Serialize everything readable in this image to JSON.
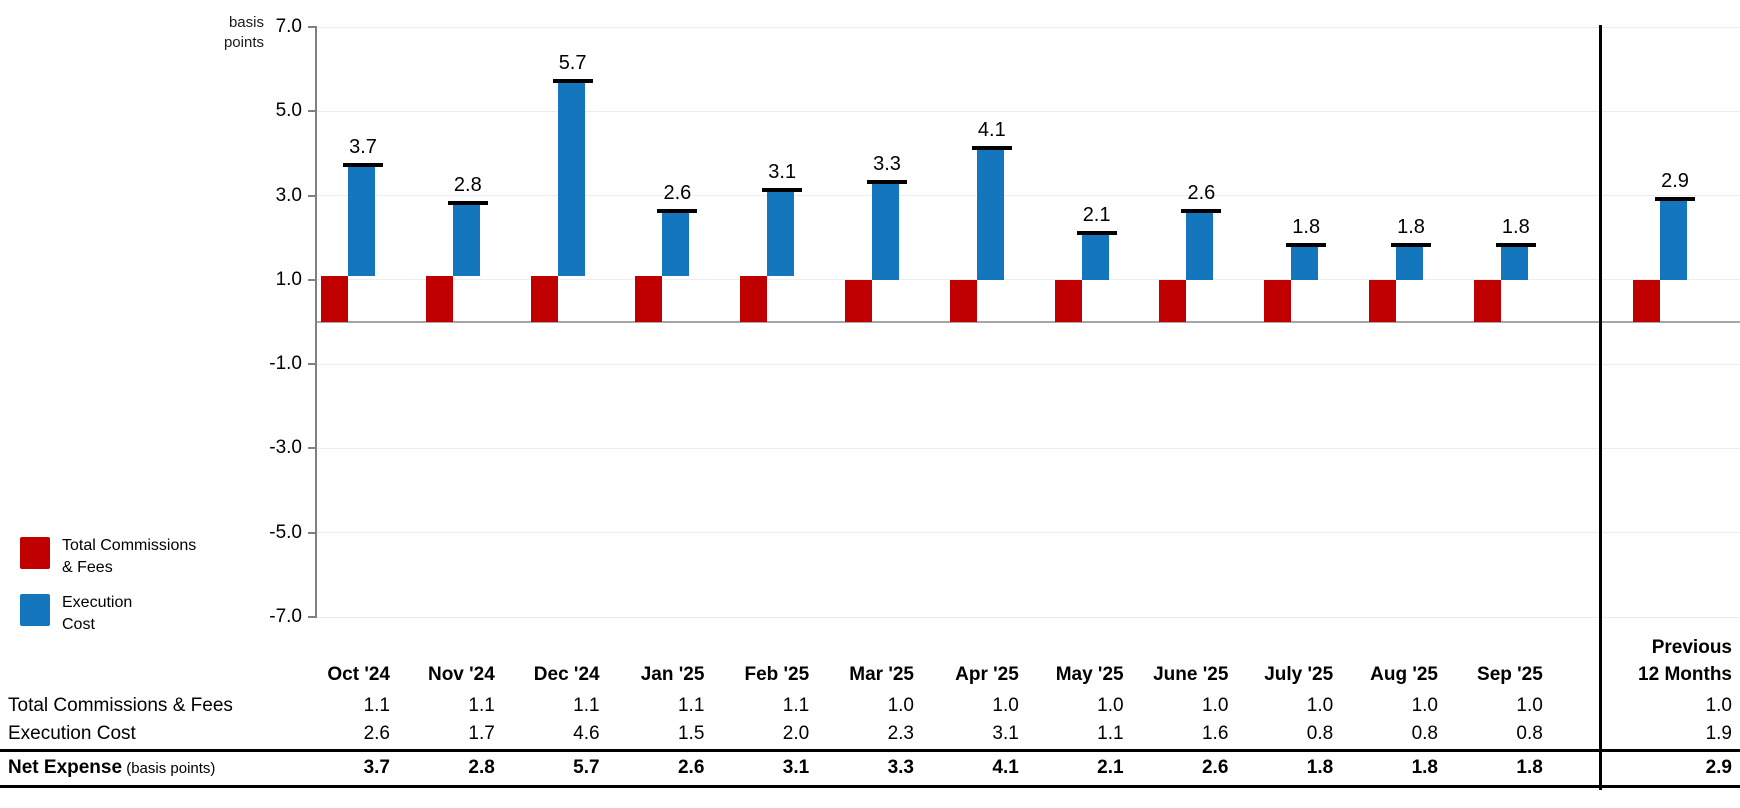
{
  "chart": {
    "axis_title_line1": "basis",
    "axis_title_line2": "points",
    "y_ticks": [
      "7.0",
      "5.0",
      "3.0",
      "1.0",
      "-1.0",
      "-3.0",
      "-5.0",
      "-7.0"
    ],
    "colors": {
      "commissions_red": "#c00000",
      "execution_blue": "#1476bd",
      "gridline": "#e8edf4",
      "zero_line": "#a6a6a6",
      "axis_gray": "#808080",
      "total_cap_black": "#000000",
      "divider_black": "#000000"
    }
  },
  "legend": {
    "items": [
      {
        "label_line1": "Total Commissions",
        "label_line2": "& Fees",
        "color": "#c00000"
      },
      {
        "label_line1": "Execution",
        "label_line2": "Cost",
        "color": "#1476bd"
      }
    ]
  },
  "chart_data": {
    "type": "bar",
    "subtype": "offset-stacked-with-total-caps",
    "title": "",
    "ylabel": "basis points",
    "ylim": [
      -7.0,
      7.0
    ],
    "grid": true,
    "legend_position": "bottom-left",
    "separator_before_last_category": true,
    "categories": [
      "Oct '24",
      "Nov '24",
      "Dec '24",
      "Jan '25",
      "Feb '25",
      "Mar '25",
      "Apr '25",
      "May '25",
      "June '25",
      "July '25",
      "Aug '25",
      "Sep '25",
      "Previous 12 Months"
    ],
    "series": [
      {
        "name": "Total Commissions & Fees",
        "color": "#c00000",
        "values": [
          1.1,
          1.1,
          1.1,
          1.1,
          1.1,
          1.0,
          1.0,
          1.0,
          1.0,
          1.0,
          1.0,
          1.0,
          1.0
        ]
      },
      {
        "name": "Execution Cost",
        "color": "#1476bd",
        "values": [
          2.6,
          1.7,
          4.6,
          1.5,
          2.0,
          2.3,
          3.1,
          1.1,
          1.6,
          0.8,
          0.8,
          0.8,
          1.9
        ]
      }
    ],
    "totals": [
      3.7,
      2.8,
      5.7,
      2.6,
      3.1,
      3.3,
      4.1,
      2.1,
      2.6,
      1.8,
      1.8,
      1.8,
      2.9
    ],
    "total_labels": [
      "3.7",
      "2.8",
      "5.7",
      "2.6",
      "3.1",
      "3.3",
      "4.1",
      "2.1",
      "2.6",
      "1.8",
      "1.8",
      "1.8",
      "2.9"
    ]
  },
  "table": {
    "col_headers": [
      "Oct '24",
      "Nov '24",
      "Dec '24",
      "Jan '25",
      "Feb '25",
      "Mar '25",
      "Apr '25",
      "May '25",
      "June '25",
      "July '25",
      "Aug '25",
      "Sep '25"
    ],
    "last_col_header_line1": "Previous",
    "last_col_header_line2": "12 Months",
    "rows": [
      {
        "label": "Total Commissions & Fees",
        "label_suffix": "",
        "bold": false,
        "values": [
          "1.1",
          "1.1",
          "1.1",
          "1.1",
          "1.1",
          "1.0",
          "1.0",
          "1.0",
          "1.0",
          "1.0",
          "1.0",
          "1.0",
          "1.0"
        ]
      },
      {
        "label": "Execution Cost",
        "label_suffix": "",
        "bold": false,
        "values": [
          "2.6",
          "1.7",
          "4.6",
          "1.5",
          "2.0",
          "2.3",
          "3.1",
          "1.1",
          "1.6",
          "0.8",
          "0.8",
          "0.8",
          "1.9"
        ]
      },
      {
        "label": "Net Expense",
        "label_suffix": " (basis points)",
        "bold": true,
        "values": [
          "3.7",
          "2.8",
          "5.7",
          "2.6",
          "3.1",
          "3.3",
          "4.1",
          "2.1",
          "2.6",
          "1.8",
          "1.8",
          "1.8",
          "2.9"
        ]
      }
    ]
  }
}
